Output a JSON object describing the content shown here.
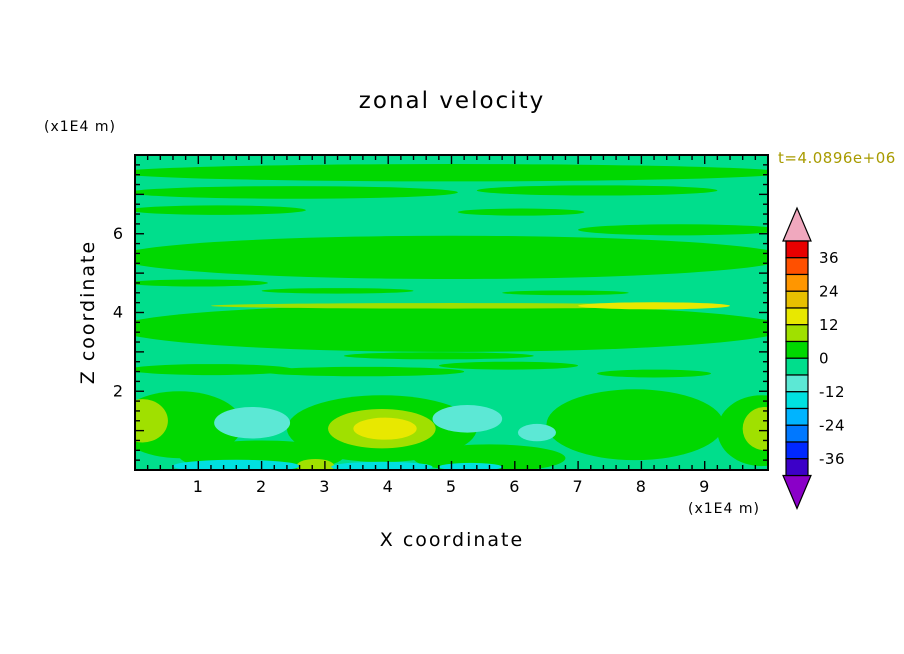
{
  "page": {
    "background": "#FFFFFF"
  },
  "chart_data": {
    "type": "heatmap",
    "subtype": "filled-contour",
    "title": "zonal velocity",
    "time_label": "t=4.0896e+06",
    "time_label_color": "#A89B00",
    "axes": {
      "x": {
        "label": "X coordinate",
        "unit": "(x1E4 m)",
        "min": 0,
        "max": 10,
        "tick_labels": [
          "1",
          "2",
          "3",
          "4",
          "5",
          "6",
          "7",
          "8",
          "9"
        ],
        "tick_values": [
          1,
          2,
          3,
          4,
          5,
          6,
          7,
          8,
          9
        ],
        "minor_step": 0.2
      },
      "z": {
        "label": "Z coordinate",
        "unit": "(x1E4 m)",
        "min": 0,
        "max": 8,
        "tick_labels": [
          "2",
          "4",
          "6"
        ],
        "tick_values": [
          2,
          4,
          6
        ],
        "major_step": 1,
        "minor_step": 0.25
      }
    },
    "colorbar": {
      "min": -42,
      "max": 42,
      "step": 6,
      "labels": [
        "36",
        "24",
        "12",
        "0",
        "-12",
        "-24",
        "-36"
      ],
      "label_values": [
        36,
        24,
        12,
        0,
        -12,
        -24,
        -36
      ],
      "segment_colors_top_to_bottom": [
        "#E80000",
        "#FF5000",
        "#FF9600",
        "#E8C000",
        "#E8E800",
        "#A0E000",
        "#00D800",
        "#00DE8C",
        "#5CE8D5",
        "#00E0E0",
        "#00B4FF",
        "#0078FF",
        "#0028FF",
        "#3C00C8"
      ],
      "arrow_top_color": "#F0A8BE",
      "arrow_bottom_color": "#8A00C8"
    },
    "field": {
      "background_color": "#00DE8C",
      "background_level": "-6..0",
      "features": [
        {
          "x": 5.0,
          "z": 7.55,
          "rx": 5.3,
          "rz": 0.22,
          "color": "#00D800",
          "level": "0..6"
        },
        {
          "x": 2.5,
          "z": 7.05,
          "rx": 2.6,
          "rz": 0.16,
          "color": "#00D800",
          "level": "0..6"
        },
        {
          "x": 7.3,
          "z": 7.1,
          "rx": 1.9,
          "rz": 0.13,
          "color": "#00D800",
          "level": "0..6"
        },
        {
          "x": 1.3,
          "z": 6.6,
          "rx": 1.4,
          "rz": 0.12,
          "color": "#00D800",
          "level": "0..6"
        },
        {
          "x": 6.1,
          "z": 6.55,
          "rx": 1.0,
          "rz": 0.09,
          "color": "#00D800",
          "level": "0..6"
        },
        {
          "x": 8.6,
          "z": 6.1,
          "rx": 1.6,
          "rz": 0.14,
          "color": "#00D800",
          "level": "0..6"
        },
        {
          "x": 5.0,
          "z": 5.4,
          "rx": 5.3,
          "rz": 0.55,
          "color": "#00D800",
          "level": "0..6"
        },
        {
          "x": 1.0,
          "z": 4.75,
          "rx": 1.1,
          "rz": 0.09,
          "color": "#00D800",
          "level": "0..6"
        },
        {
          "x": 3.2,
          "z": 4.55,
          "rx": 1.2,
          "rz": 0.07,
          "color": "#00D800",
          "level": "0..6"
        },
        {
          "x": 6.8,
          "z": 4.5,
          "rx": 1.0,
          "rz": 0.06,
          "color": "#00D800",
          "level": "0..6"
        },
        {
          "x": 5.0,
          "z": 3.6,
          "rx": 5.3,
          "rz": 0.6,
          "color": "#00D800",
          "level": "0..6"
        },
        {
          "x": 5.0,
          "z": 4.17,
          "rx": 3.8,
          "rz": 0.07,
          "color": "#A0E000",
          "level": "6..12"
        },
        {
          "x": 8.2,
          "z": 4.17,
          "rx": 1.2,
          "rz": 0.09,
          "color": "#E8E800",
          "level": "12..18"
        },
        {
          "x": 1.2,
          "z": 2.55,
          "rx": 1.3,
          "rz": 0.14,
          "color": "#00D800",
          "level": "0..6"
        },
        {
          "x": 3.6,
          "z": 2.5,
          "rx": 1.6,
          "rz": 0.12,
          "color": "#00D800",
          "level": "0..6"
        },
        {
          "x": 5.9,
          "z": 2.65,
          "rx": 1.1,
          "rz": 0.1,
          "color": "#00D800",
          "level": "0..6"
        },
        {
          "x": 8.2,
          "z": 2.45,
          "rx": 0.9,
          "rz": 0.1,
          "color": "#00D800",
          "level": "0..6"
        },
        {
          "x": 4.8,
          "z": 2.9,
          "rx": 1.5,
          "rz": 0.09,
          "color": "#00D800",
          "level": "0..6"
        },
        {
          "x": 0.7,
          "z": 1.15,
          "rx": 1.0,
          "rz": 0.85,
          "color": "#00D800",
          "level": "0..6"
        },
        {
          "x": 3.9,
          "z": 1.05,
          "rx": 1.5,
          "rz": 0.85,
          "color": "#00D800",
          "level": "0..6"
        },
        {
          "x": 7.9,
          "z": 1.15,
          "rx": 1.4,
          "rz": 0.9,
          "color": "#00D800",
          "level": "0..6"
        },
        {
          "x": 9.9,
          "z": 1.0,
          "rx": 0.7,
          "rz": 0.9,
          "color": "#00D800",
          "level": "0..6"
        },
        {
          "x": 2.0,
          "z": 0.35,
          "rx": 1.3,
          "rz": 0.4,
          "color": "#00D800",
          "level": "0..6"
        },
        {
          "x": 5.6,
          "z": 0.3,
          "rx": 1.2,
          "rz": 0.35,
          "color": "#00D800",
          "level": "0..6"
        },
        {
          "x": 0.12,
          "z": 1.25,
          "rx": 0.4,
          "rz": 0.55,
          "color": "#A0E000",
          "level": "6..12"
        },
        {
          "x": 3.9,
          "z": 1.05,
          "rx": 0.85,
          "rz": 0.5,
          "color": "#A0E000",
          "level": "6..12"
        },
        {
          "x": 3.95,
          "z": 1.05,
          "rx": 0.5,
          "rz": 0.28,
          "color": "#E8E800",
          "level": "12..18"
        },
        {
          "x": 9.95,
          "z": 1.05,
          "rx": 0.35,
          "rz": 0.55,
          "color": "#A0E000",
          "level": "6..12"
        },
        {
          "x": 2.85,
          "z": 0.1,
          "rx": 0.3,
          "rz": 0.18,
          "color": "#A0E000",
          "level": "6..12"
        },
        {
          "x": 1.85,
          "z": 1.2,
          "rx": 0.6,
          "rz": 0.4,
          "color": "#5CE8D5",
          "level": "-12..-6"
        },
        {
          "x": 5.25,
          "z": 1.3,
          "rx": 0.55,
          "rz": 0.35,
          "color": "#5CE8D5",
          "level": "-12..-6"
        },
        {
          "x": 6.35,
          "z": 0.95,
          "rx": 0.3,
          "rz": 0.22,
          "color": "#5CE8D5",
          "level": "-12..-6"
        },
        {
          "x": 1.6,
          "z": 0.1,
          "rx": 1.0,
          "rz": 0.16,
          "color": "#00E0E0",
          "level": "-18..-12"
        },
        {
          "x": 3.9,
          "z": 0.08,
          "rx": 0.8,
          "rz": 0.13,
          "color": "#00E0E0",
          "level": "-18..-12"
        },
        {
          "x": 5.3,
          "z": 0.08,
          "rx": 0.5,
          "rz": 0.1,
          "color": "#00E0E0",
          "level": "-18..-12"
        }
      ]
    }
  }
}
